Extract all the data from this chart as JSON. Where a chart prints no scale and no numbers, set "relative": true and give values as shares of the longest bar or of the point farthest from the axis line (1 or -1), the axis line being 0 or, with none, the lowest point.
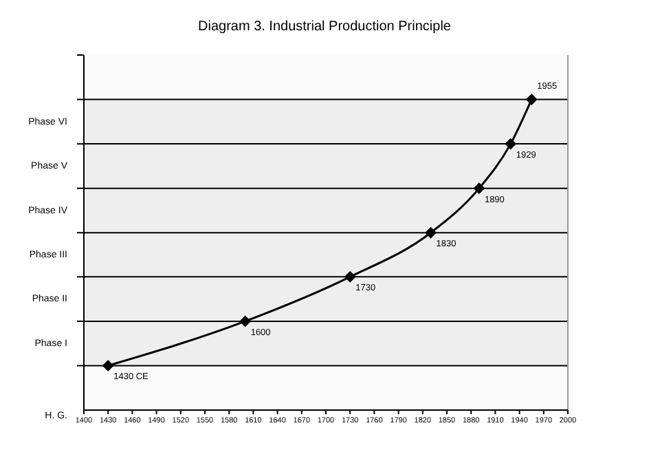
{
  "chart_data": {
    "type": "line",
    "title": "Diagram 3. Industrial Production Principle",
    "x": [
      1430,
      1600,
      1730,
      1830,
      1890,
      1929,
      1955
    ],
    "relative": true,
    "series": [
      {
        "color": "#000000",
        "values": [
          0.143,
          0.286,
          0.429,
          0.571,
          0.714,
          0.857,
          1
        ]
      }
    ],
    "xlim": [
      1400,
      2000
    ],
    "xticks": [
      1400,
      1430,
      1460,
      1490,
      1520,
      1550,
      1580,
      1610,
      1640,
      1670,
      1700,
      1730,
      1760,
      1790,
      1820,
      1850,
      1880,
      1910,
      1940,
      1970,
      2000
    ],
    "bands": [
      {
        "axis": "y",
        "from": 0.143,
        "to": 0.286,
        "label": "Phase I",
        "color": "#eeeeee"
      },
      {
        "axis": "y",
        "from": 0.286,
        "to": 0.429,
        "label": "Phase II",
        "color": "#eeeeee"
      },
      {
        "axis": "y",
        "from": 0.429,
        "to": 0.571,
        "label": "Phase III",
        "color": "#eeeeee"
      },
      {
        "axis": "y",
        "from": 0.571,
        "to": 0.714,
        "label": "Phase IV",
        "color": "#eeeeee"
      },
      {
        "axis": "y",
        "from": 0.714,
        "to": 0.857,
        "label": "Phase V",
        "color": "#eeeeee"
      },
      {
        "axis": "y",
        "from": 0.857,
        "to": 1,
        "label": "Phase VI",
        "color": "#eeeeee"
      }
    ],
    "annotations": [
      "H. G.",
      {
        "text": "1430 CE",
        "x": 1430,
        "y": 0.143
      },
      {
        "text": "1600",
        "x": 1600,
        "y": 0.286
      },
      {
        "text": "1730",
        "x": 1730,
        "y": 0.429
      },
      {
        "text": "1830",
        "x": 1830,
        "y": 0.571
      },
      {
        "text": "1890",
        "x": 1890,
        "y": 0.714
      },
      {
        "text": "1929",
        "x": 1929,
        "y": 0.857
      },
      {
        "text": "1955",
        "x": 1955,
        "y": 1
      }
    ],
    "marker": "diamond",
    "line_style": "solid"
  }
}
